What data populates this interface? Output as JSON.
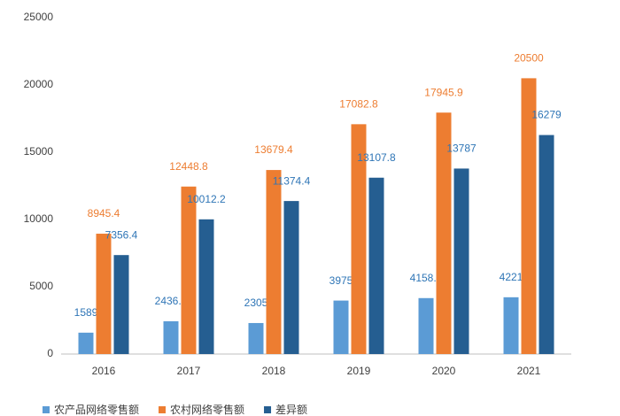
{
  "chart_data": {
    "type": "bar",
    "categories": [
      "2016",
      "2017",
      "2018",
      "2019",
      "2020",
      "2021"
    ],
    "series": [
      {
        "name": "农产品网络零售额",
        "color": "#5b9bd5",
        "values": [
          1589,
          2436.6,
          2305,
          3975,
          4158.9,
          4221
        ]
      },
      {
        "name": "农村网络零售额",
        "color": "#ed7d31",
        "values": [
          8945.4,
          12448.8,
          13679.4,
          17082.8,
          17945.9,
          20500
        ]
      },
      {
        "name": "差异额",
        "color": "#255e91",
        "values": [
          7356.4,
          10012.2,
          11374.4,
          13107.8,
          13787,
          16279
        ]
      }
    ],
    "ylim": [
      0,
      25000
    ],
    "yticks": [
      0,
      5000,
      10000,
      15000,
      20000,
      25000
    ],
    "grid": false,
    "legend": "bottom"
  }
}
